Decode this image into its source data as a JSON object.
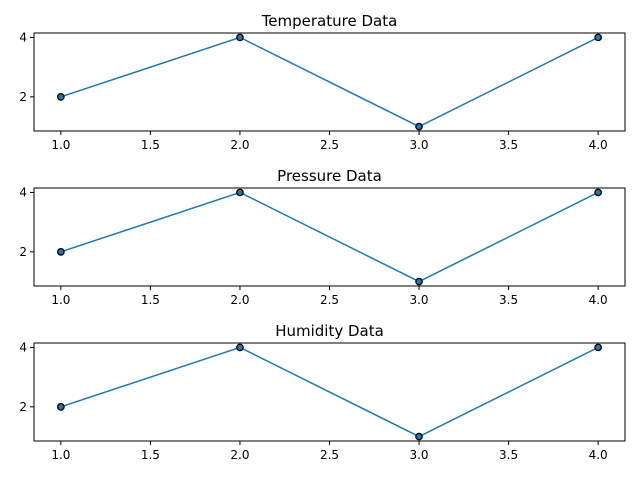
{
  "chart_data": [
    {
      "type": "line",
      "title": "Temperature Data",
      "xlabel": "",
      "ylabel": "",
      "x": [
        1,
        2,
        3,
        4
      ],
      "series": [
        {
          "values": [
            2,
            4,
            1,
            4
          ]
        }
      ],
      "xlim": [
        0.85,
        4.15
      ],
      "ylim": [
        0.85,
        4.15
      ],
      "xticks": [
        1.0,
        1.5,
        2.0,
        2.5,
        3.0,
        3.5,
        4.0
      ],
      "xtick_labels": [
        "1.0",
        "1.5",
        "2.0",
        "2.5",
        "3.0",
        "3.5",
        "4.0"
      ],
      "yticks": [
        2,
        4
      ],
      "ytick_labels": [
        "2",
        "4"
      ],
      "grid": false,
      "marker": "o"
    },
    {
      "type": "line",
      "title": "Pressure Data",
      "xlabel": "",
      "ylabel": "",
      "x": [
        1,
        2,
        3,
        4
      ],
      "series": [
        {
          "values": [
            2,
            4,
            1,
            4
          ]
        }
      ],
      "xlim": [
        0.85,
        4.15
      ],
      "ylim": [
        0.85,
        4.15
      ],
      "xticks": [
        1.0,
        1.5,
        2.0,
        2.5,
        3.0,
        3.5,
        4.0
      ],
      "xtick_labels": [
        "1.0",
        "1.5",
        "2.0",
        "2.5",
        "3.0",
        "3.5",
        "4.0"
      ],
      "yticks": [
        2,
        4
      ],
      "ytick_labels": [
        "2",
        "4"
      ],
      "grid": false,
      "marker": "o"
    },
    {
      "type": "line",
      "title": "Humidity Data",
      "xlabel": "",
      "ylabel": "",
      "x": [
        1,
        2,
        3,
        4
      ],
      "series": [
        {
          "values": [
            2,
            4,
            1,
            4
          ]
        }
      ],
      "xlim": [
        0.85,
        4.15
      ],
      "ylim": [
        0.85,
        4.15
      ],
      "xticks": [
        1.0,
        1.5,
        2.0,
        2.5,
        3.0,
        3.5,
        4.0
      ],
      "xtick_labels": [
        "1.0",
        "1.5",
        "2.0",
        "2.5",
        "3.0",
        "3.5",
        "4.0"
      ],
      "yticks": [
        2,
        4
      ],
      "ytick_labels": [
        "2",
        "4"
      ],
      "grid": false,
      "marker": "o"
    }
  ],
  "colors": {
    "line": "#1f77b4",
    "marker_face": "#1f77b4",
    "marker_edge": "#000000",
    "axes": "#000000",
    "background": "#ffffff"
  }
}
